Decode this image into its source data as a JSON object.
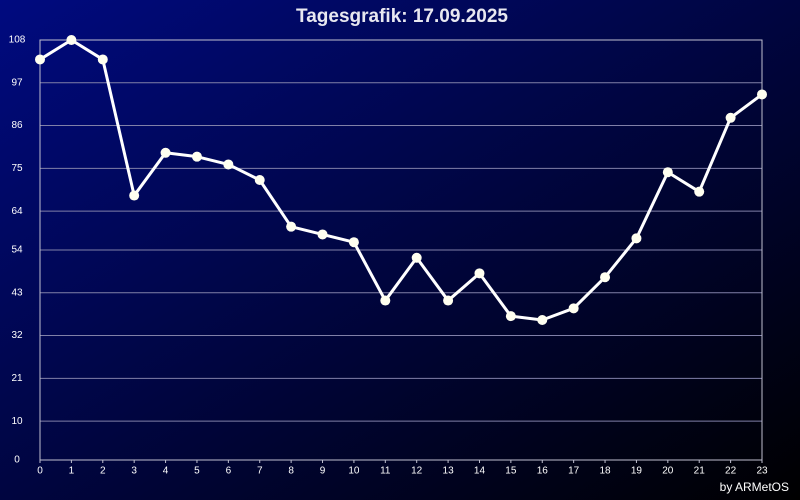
{
  "chart_data": {
    "type": "line",
    "title": "Tagesgrafik: 17.09.2025",
    "credit": "by ARMetOS",
    "x": [
      0,
      1,
      2,
      3,
      4,
      5,
      6,
      7,
      8,
      9,
      10,
      11,
      12,
      13,
      14,
      15,
      16,
      17,
      18,
      19,
      20,
      21,
      22,
      23
    ],
    "values": [
      103,
      108,
      103,
      68,
      79,
      78,
      76,
      72,
      60,
      58,
      56,
      41,
      52,
      41,
      48,
      37,
      36,
      39,
      47,
      57,
      74,
      69,
      88,
      94
    ],
    "color": "#ffffff",
    "marker_color": "#fffff0",
    "xlim": [
      0,
      23
    ],
    "xticks": [
      0,
      1,
      2,
      3,
      4,
      5,
      6,
      7,
      8,
      9,
      10,
      11,
      12,
      13,
      14,
      15,
      16,
      17,
      18,
      19,
      20,
      21,
      22,
      23
    ],
    "ylim": [
      0,
      108
    ],
    "yticks": [
      0,
      10,
      21,
      32,
      43,
      54,
      64,
      75,
      86,
      97,
      108
    ],
    "grid": true
  }
}
